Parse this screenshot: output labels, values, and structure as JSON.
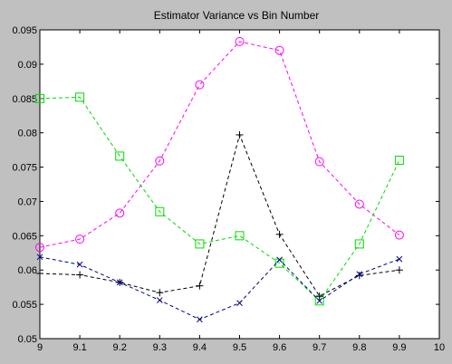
{
  "chart_data": {
    "type": "line",
    "title": "Estimator Variance vs Bin Number",
    "xlabel": "",
    "ylabel": "",
    "xlim": [
      9,
      10
    ],
    "ylim": [
      0.05,
      0.095
    ],
    "x_ticks": [
      "9",
      "9.1",
      "9.2",
      "9.3",
      "9.4",
      "9.5",
      "9.6",
      "9.7",
      "9.8",
      "9.9",
      "10"
    ],
    "y_ticks": [
      "0.05",
      "0.055",
      "0.06",
      "0.065",
      "0.07",
      "0.075",
      "0.08",
      "0.085",
      "0.09",
      "0.095"
    ],
    "grid": false,
    "background": "#c0c0c0",
    "plot_background": "#ffffff",
    "x": [
      9.0,
      9.1,
      9.2,
      9.3,
      9.4,
      9.5,
      9.6,
      9.7,
      9.8,
      9.9
    ],
    "series": [
      {
        "color": "#ff00ff",
        "marker": "circle",
        "values": [
          0.0633,
          0.0645,
          0.0683,
          0.0759,
          0.087,
          0.0933,
          0.092,
          0.0758,
          0.0696,
          0.0651
        ]
      },
      {
        "color": "#00dd00",
        "marker": "square",
        "values": [
          0.085,
          0.0852,
          0.0766,
          0.0685,
          0.0638,
          0.065,
          0.061,
          0.0555,
          0.0638,
          0.076
        ]
      },
      {
        "color": "#000000",
        "marker": "plus",
        "values": [
          0.0595,
          0.0593,
          0.0582,
          0.0567,
          0.0577,
          0.0797,
          0.0652,
          0.0562,
          0.0592,
          0.06
        ]
      },
      {
        "color": "#00008b",
        "marker": "x",
        "values": [
          0.0619,
          0.0608,
          0.0582,
          0.0556,
          0.0528,
          0.0552,
          0.0615,
          0.0555,
          0.0594,
          0.0616
        ]
      }
    ]
  }
}
